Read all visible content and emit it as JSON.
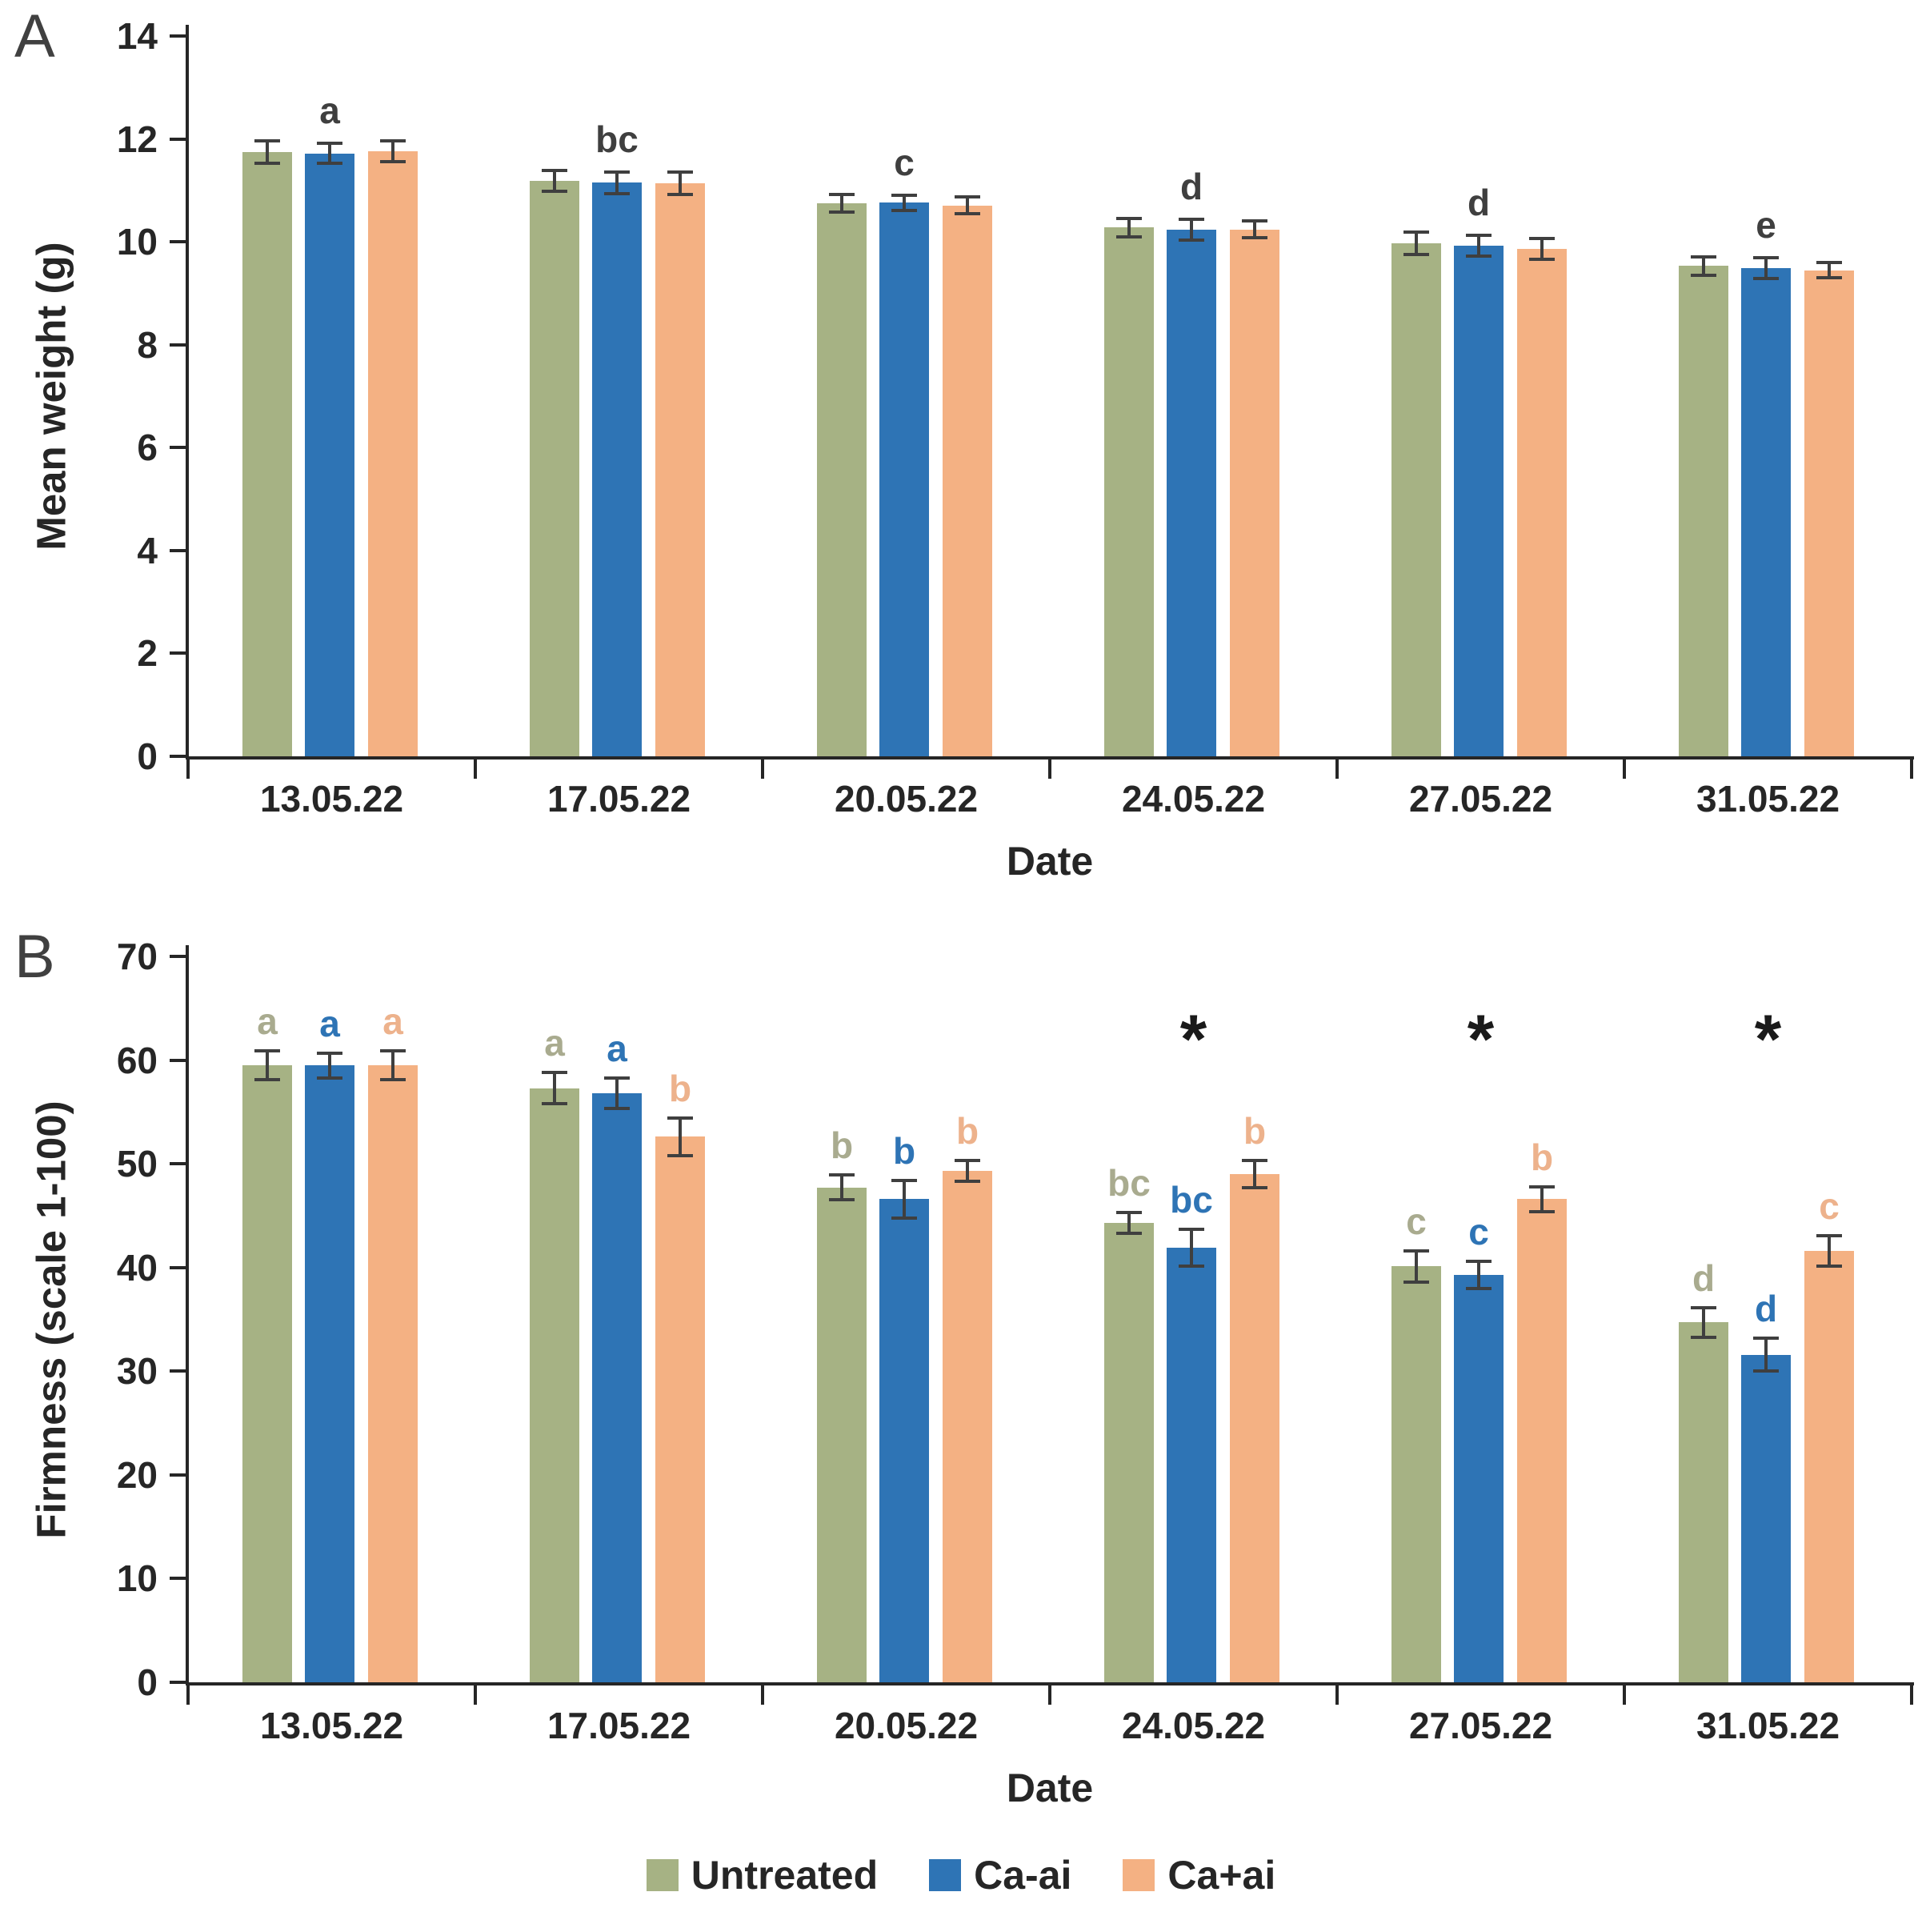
{
  "figure": {
    "panel_labels": [
      "A",
      "B"
    ],
    "x_axis_title": "Date",
    "legend": {
      "items": [
        {
          "label": "Untreated",
          "color": "#a6b284"
        },
        {
          "label": "Ca-ai",
          "color": "#2e74b5"
        },
        {
          "label": "Ca+ai",
          "color": "#f4b183"
        }
      ]
    },
    "colors": {
      "untreated": "#a6b284",
      "ca_minus_ai": "#2e74b5",
      "ca_plus_ai": "#f4b183",
      "axis": "#262626",
      "error_bar": "#3f3f3f",
      "letter_untreated": "#a9ab8f",
      "letter_ca_minus": "#2e74b5",
      "letter_ca_plus": "#edb28c",
      "letter_panel_a": "#3f3f3f",
      "asterisk": "#1a1a1a"
    }
  },
  "chart_data": [
    {
      "type": "bar",
      "panel": "A",
      "title": "",
      "xlabel": "Date",
      "ylabel": "Mean weight (g)",
      "ylim": [
        0,
        14
      ],
      "ytick_step": 2,
      "grid": false,
      "legend_position": "none",
      "categories": [
        "13.05.22",
        "17.05.22",
        "20.05.22",
        "24.05.22",
        "27.05.22",
        "31.05.22"
      ],
      "series": [
        {
          "name": "Untreated",
          "values": [
            11.75,
            11.18,
            10.75,
            10.28,
            9.97,
            9.53
          ],
          "errors": [
            0.22,
            0.2,
            0.17,
            0.18,
            0.22,
            0.18
          ]
        },
        {
          "name": "Ca-ai",
          "values": [
            11.72,
            11.15,
            10.76,
            10.24,
            9.92,
            9.49
          ],
          "errors": [
            0.2,
            0.21,
            0.15,
            0.2,
            0.2,
            0.2
          ]
        },
        {
          "name": "Ca+ai",
          "values": [
            11.76,
            11.14,
            10.71,
            10.24,
            9.86,
            9.45
          ],
          "errors": [
            0.2,
            0.22,
            0.17,
            0.16,
            0.2,
            0.15
          ]
        }
      ],
      "group_letters": [
        "a",
        "bc",
        "c",
        "d",
        "d",
        "e"
      ]
    },
    {
      "type": "bar",
      "panel": "B",
      "title": "",
      "xlabel": "Date",
      "ylabel": "Firmness (scale 1-100)",
      "ylim": [
        0,
        70
      ],
      "ytick_step": 10,
      "grid": false,
      "legend_position": "bottom",
      "categories": [
        "13.05.22",
        "17.05.22",
        "20.05.22",
        "24.05.22",
        "27.05.22",
        "31.05.22"
      ],
      "series": [
        {
          "name": "Untreated",
          "values": [
            59.5,
            57.3,
            47.7,
            44.3,
            40.1,
            34.7
          ],
          "errors": [
            1.4,
            1.5,
            1.2,
            1.0,
            1.5,
            1.4
          ],
          "letters": [
            "a",
            "a",
            "b",
            "bc",
            "c",
            "d"
          ]
        },
        {
          "name": "Ca-ai",
          "values": [
            59.5,
            56.8,
            46.6,
            41.9,
            39.3,
            31.6
          ],
          "errors": [
            1.2,
            1.5,
            1.8,
            1.8,
            1.3,
            1.6
          ],
          "letters": [
            "a",
            "a",
            "b",
            "bc",
            "c",
            "d"
          ]
        },
        {
          "name": "Ca+ai",
          "values": [
            59.5,
            52.6,
            49.3,
            49.0,
            46.6,
            41.6
          ],
          "errors": [
            1.4,
            1.8,
            1.0,
            1.3,
            1.2,
            1.5
          ],
          "letters": [
            "a",
            "b",
            "b",
            "b",
            "b",
            "c"
          ]
        }
      ],
      "asterisk_categories": [
        "24.05.22",
        "27.05.22",
        "31.05.22"
      ]
    }
  ]
}
